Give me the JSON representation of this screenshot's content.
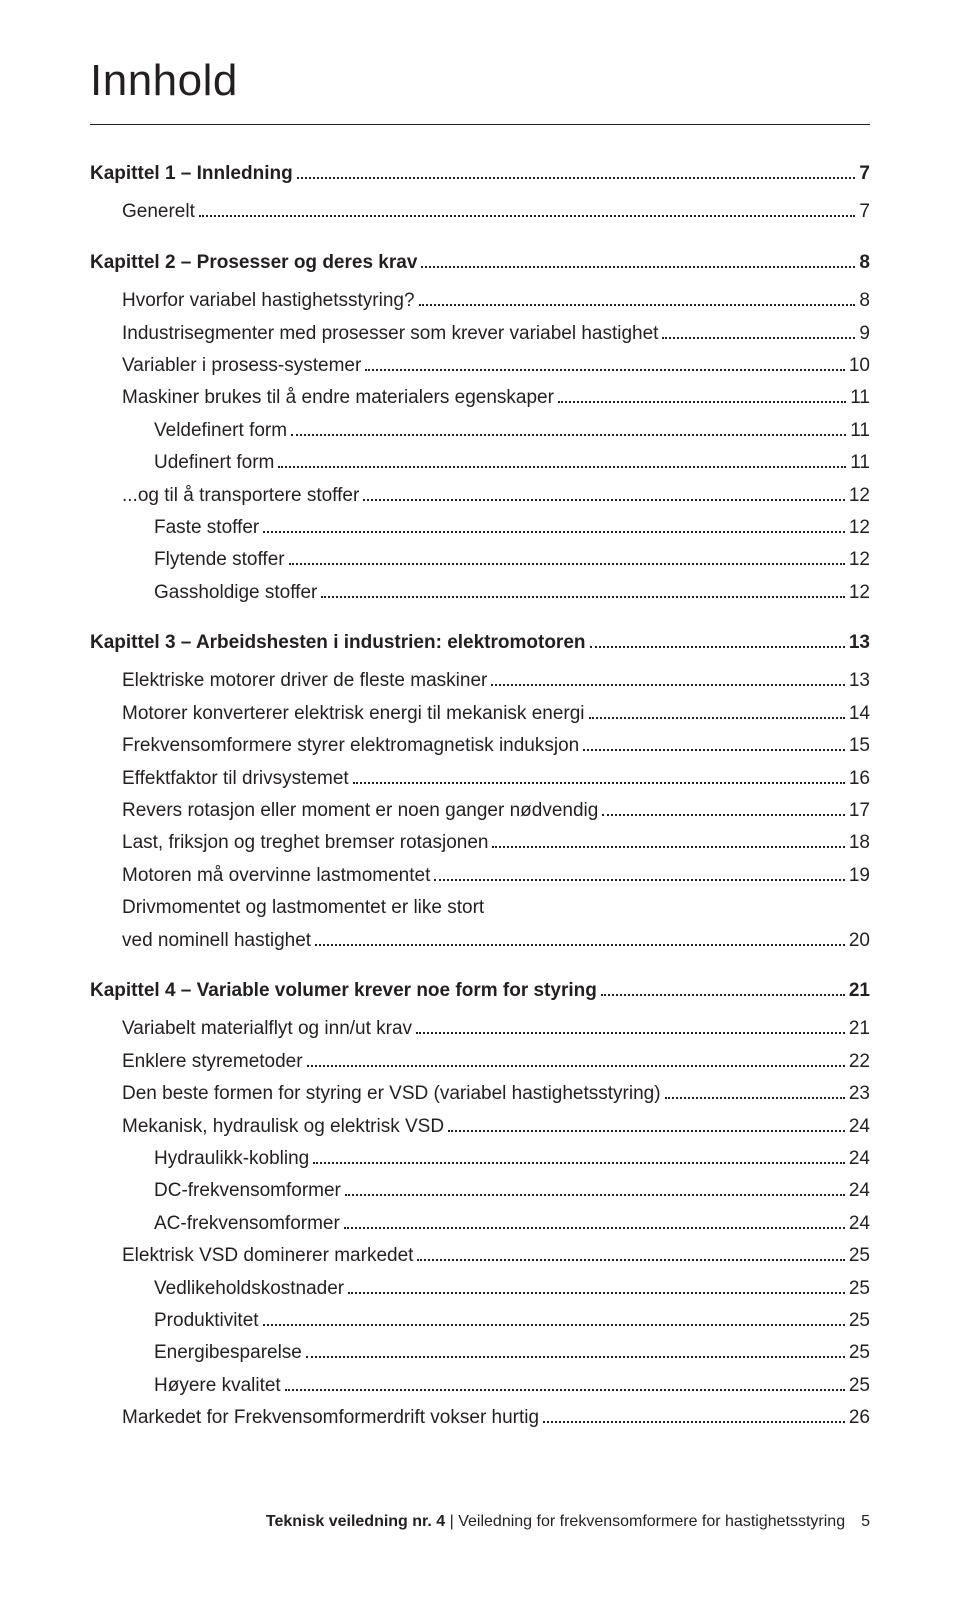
{
  "title": "Innhold",
  "chapters": [
    {
      "head": {
        "label": "Kapittel 1 – Innledning",
        "page": "7"
      },
      "entries": [
        {
          "indent": 1,
          "label": "Generelt",
          "page": "7"
        }
      ]
    },
    {
      "head": {
        "label": "Kapittel 2 – Prosesser og deres krav",
        "page": "8"
      },
      "entries": [
        {
          "indent": 1,
          "label": "Hvorfor variabel hastighetsstyring?",
          "page": "8"
        },
        {
          "indent": 1,
          "label": "Industrisegmenter med prosesser som krever variabel hastighet",
          "page": "9"
        },
        {
          "indent": 1,
          "label": "Variabler i prosess-systemer",
          "page": "10"
        },
        {
          "indent": 1,
          "label": "Maskiner brukes til å endre materialers egenskaper",
          "page": "11"
        },
        {
          "indent": 2,
          "label": "Veldefinert form",
          "page": "11"
        },
        {
          "indent": 2,
          "label": "Udefinert form",
          "page": "11"
        },
        {
          "indent": 1,
          "label": "...og til å transportere stoffer",
          "page": "12"
        },
        {
          "indent": 2,
          "label": "Faste stoffer",
          "page": "12"
        },
        {
          "indent": 2,
          "label": "Flytende stoffer",
          "page": "12"
        },
        {
          "indent": 2,
          "label": "Gassholdige stoffer",
          "page": "12"
        }
      ]
    },
    {
      "head": {
        "label": "Kapittel 3 – Arbeidshesten i industrien: elektromotoren",
        "page": "13"
      },
      "entries": [
        {
          "indent": 1,
          "label": "Elektriske motorer driver de fleste maskiner",
          "page": "13"
        },
        {
          "indent": 1,
          "label": "Motorer konverterer elektrisk energi til mekanisk energi",
          "page": "14"
        },
        {
          "indent": 1,
          "label": "Frekvensomformere styrer elektromagnetisk induksjon",
          "page": "15"
        },
        {
          "indent": 1,
          "label": "Effektfaktor til drivsystemet",
          "page": "16"
        },
        {
          "indent": 1,
          "label": "Revers rotasjon eller moment er noen ganger nødvendig",
          "page": "17"
        },
        {
          "indent": 1,
          "label": "Last, friksjon og treghet bremser rotasjonen",
          "page": "18"
        },
        {
          "indent": 1,
          "label": "Motoren må overvinne lastmomentet",
          "page": "19"
        },
        {
          "indent": 1,
          "label": "Drivmomentet og lastmomentet er like stort",
          "cont": "ved nominell hastighet",
          "page": "20"
        }
      ]
    },
    {
      "head": {
        "label": "Kapittel 4 – Variable volumer krever noe form for styring",
        "page": "21"
      },
      "entries": [
        {
          "indent": 1,
          "label": "Variabelt materialflyt og inn/ut krav",
          "page": "21"
        },
        {
          "indent": 1,
          "label": "Enklere styremetoder",
          "page": "22"
        },
        {
          "indent": 1,
          "label": "Den beste formen for styring er VSD (variabel hastighetsstyring)",
          "page": "23"
        },
        {
          "indent": 1,
          "label": "Mekanisk, hydraulisk og elektrisk VSD",
          "page": "24"
        },
        {
          "indent": 2,
          "label": "Hydraulikk-kobling",
          "page": "24"
        },
        {
          "indent": 2,
          "label": "DC-frekvensomformer",
          "page": "24"
        },
        {
          "indent": 2,
          "label": "AC-frekvensomformer",
          "page": "24"
        },
        {
          "indent": 1,
          "label": "Elektrisk VSD dominerer markedet",
          "page": "25"
        },
        {
          "indent": 2,
          "label": "Vedlikeholdskostnader",
          "page": "25"
        },
        {
          "indent": 2,
          "label": "Produktivitet",
          "page": "25"
        },
        {
          "indent": 2,
          "label": "Energibesparelse",
          "page": "25"
        },
        {
          "indent": 2,
          "label": "Høyere kvalitet",
          "page": "25"
        },
        {
          "indent": 1,
          "label": "Markedet for Frekvensomformerdrift vokser hurtig",
          "page": "26"
        }
      ]
    }
  ],
  "footer": {
    "bold": "Teknisk veiledning nr. 4",
    "sep": " | ",
    "rest": "Veiledning for frekvensomformere for hastighetsstyring",
    "pagenum": "5"
  }
}
